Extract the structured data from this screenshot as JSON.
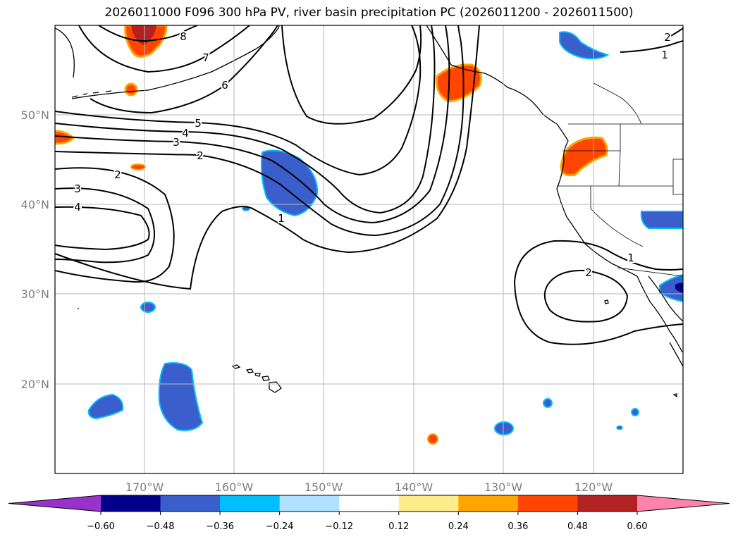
{
  "title": "2026011000 F096 300 hPa PV, river basin precipitation PC (2026011200 - 2026011500)",
  "map": {
    "lon_range": [
      -180,
      -110
    ],
    "lat_range": [
      10,
      60
    ],
    "longitude_labels": [
      "170°W",
      "160°W",
      "150°W",
      "140°W",
      "130°W",
      "120°W"
    ],
    "latitude_labels": [
      "50°N",
      "40°N",
      "30°N",
      "20°N"
    ],
    "contour_labels": [
      "8",
      "7",
      "6",
      "5",
      "4",
      "3",
      "2",
      "2",
      "3",
      "4",
      "1",
      "1",
      "2",
      "2",
      "1"
    ]
  },
  "colorbar": {
    "extend": "both",
    "colors": [
      "#9932cc",
      "#00008b",
      "#3a5fcd",
      "#00bfff",
      "#b0e2ff",
      "#ffffff",
      "#ffec8b",
      "#ffa500",
      "#ff4500",
      "#b22222",
      "#ff82ab"
    ],
    "tick_labels": [
      "−0.60",
      "−0.48",
      "−0.36",
      "−0.24",
      "−0.12",
      "0.12",
      "0.24",
      "0.36",
      "0.48",
      "0.60"
    ]
  }
}
